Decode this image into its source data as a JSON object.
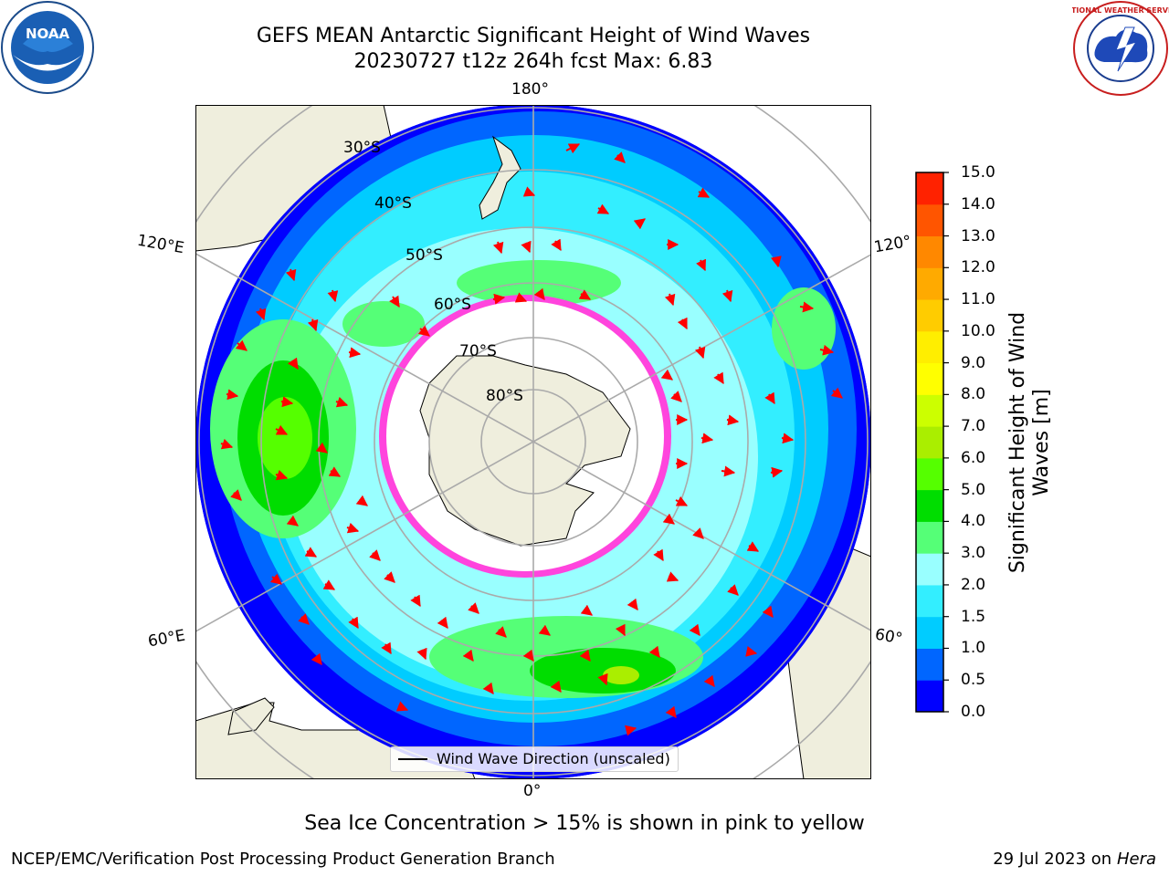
{
  "header": {
    "title_line1": "GEFS MEAN Antarctic Significant Height of Wind Waves",
    "title_line2": "20230727 t12z 264h fcst   Max: 6.83"
  },
  "logos": {
    "left": "noaa-logo",
    "right": "national-weather-service-logo",
    "left_text": "NOAA",
    "right_text": "NATIONAL WEATHER SERVICE"
  },
  "map": {
    "projection": "south-polar-stereographic",
    "longitude_labels": {
      "top": "180°",
      "bottom": "0°",
      "left_upper": "120°E",
      "left_lower": "60°E",
      "right_upper": "120°",
      "right_lower": "60°"
    },
    "latitude_labels": [
      "30°S",
      "40°S",
      "50°S",
      "60°S",
      "70°S",
      "80°S"
    ],
    "legend_label": "Wind Wave Direction (unscaled)",
    "arrow_color": "#ff0000",
    "ice_color": "#ff44dd",
    "land_color": "#efeedd"
  },
  "colorbar": {
    "title": "Significant Height of Wind Waves [m]",
    "ticks": [
      "15.0",
      "14.0",
      "13.0",
      "12.0",
      "11.0",
      "10.0",
      "9.0",
      "8.0",
      "7.0",
      "6.0",
      "5.0",
      "4.0",
      "3.0",
      "2.0",
      "1.5",
      "1.0",
      "0.5",
      "0.0"
    ],
    "colors": [
      "#0000ff",
      "#0066ff",
      "#00ccff",
      "#33eeff",
      "#99ffff",
      "#55ff77",
      "#00dd00",
      "#55ff00",
      "#aaee00",
      "#ccff00",
      "#ffff00",
      "#ffee00",
      "#ffcc00",
      "#ffaa00",
      "#ff8800",
      "#ff5500",
      "#ff2200"
    ]
  },
  "notes": {
    "sea_ice": "Sea Ice Concentration > 15% is shown in pink to yellow",
    "credit": "NCEP/EMC/Verification Post Processing Product Generation Branch",
    "date_prefix": "29 Jul 2023 on",
    "date_machine": "Hera"
  }
}
